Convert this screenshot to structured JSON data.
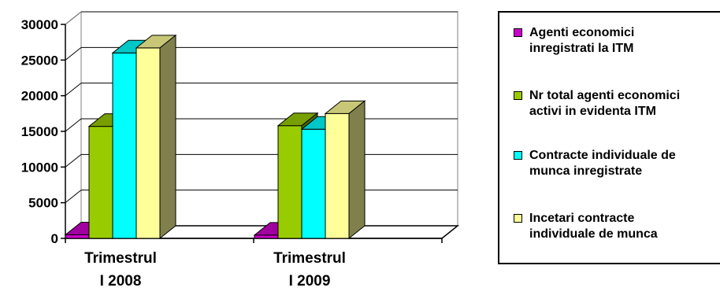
{
  "chart_data": {
    "type": "bar",
    "categories": [
      "Trimestrul I 2008",
      "Trimestrul I 2009"
    ],
    "category_lines": [
      [
        "Trimestrul",
        "I 2008"
      ],
      [
        "Trimestrul",
        "I 2009"
      ]
    ],
    "series": [
      {
        "name": "Agenti economici inregistrati la ITM",
        "values": [
          500,
          450
        ],
        "color": "#cc00cc"
      },
      {
        "name": "Nr total agenti economici activi in evidenta ITM",
        "values": [
          15700,
          15800
        ],
        "color": "#99cc00"
      },
      {
        "name": "Contracte individuale de munca inregistrate",
        "values": [
          26000,
          15300
        ],
        "color": "#00ffff"
      },
      {
        "name": "Incetari contracte individuale de munca",
        "values": [
          26700,
          17500
        ],
        "color": "#ffff99"
      }
    ],
    "legend_lines": [
      [
        "Agenti economici",
        "inregistrati la ITM"
      ],
      [
        "Nr total agenti economici",
        "activi in evidenta ITM"
      ],
      [
        "Contracte individuale de",
        "munca inregistrate"
      ],
      [
        "Incetari contracte",
        "individuale de munca"
      ]
    ],
    "yticks": [
      0,
      5000,
      10000,
      15000,
      20000,
      25000,
      30000
    ],
    "ylim": [
      0,
      30000
    ],
    "grid": true,
    "legend_position": "right",
    "title": "",
    "xlabel": "",
    "ylabel": ""
  }
}
